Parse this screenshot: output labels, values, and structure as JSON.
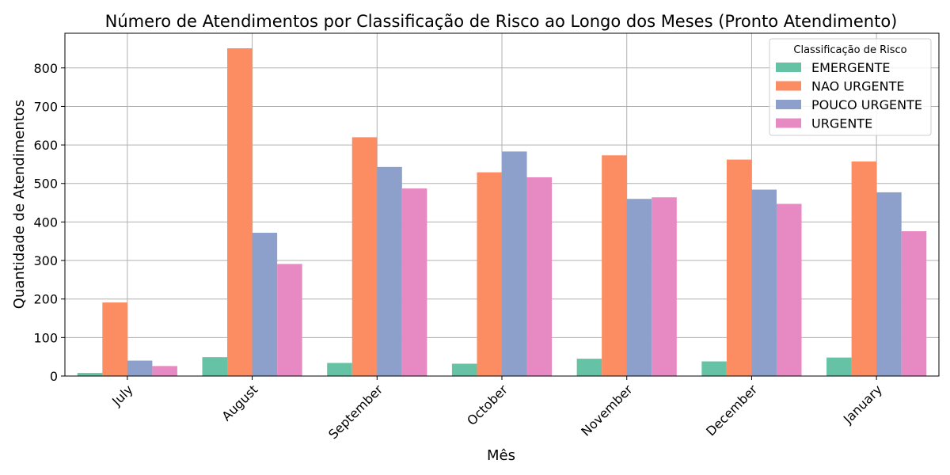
{
  "chart_data": {
    "type": "bar",
    "title": "Número de Atendimentos por Classificação de Risco ao Longo dos Meses (Pronto Atendimento)",
    "xlabel": "Mês",
    "ylabel": "Quantidade de Atendimentos",
    "ylim": [
      0,
      890
    ],
    "yticks": [
      0,
      100,
      200,
      300,
      400,
      500,
      600,
      700,
      800
    ],
    "grid": true,
    "legend_title": "Classificação de Risco",
    "legend_placement": "top-right",
    "categories": [
      "July",
      "August",
      "September",
      "October",
      "November",
      "December",
      "January"
    ],
    "series": [
      {
        "name": "EMERGENTE",
        "color": "#66c2a5",
        "values": [
          8,
          49,
          34,
          32,
          45,
          38,
          48
        ]
      },
      {
        "name": "NAO URGENTE",
        "color": "#fc8d62",
        "values": [
          191,
          851,
          620,
          529,
          573,
          562,
          557
        ]
      },
      {
        "name": "POUCO URGENTE",
        "color": "#8da0cb",
        "values": [
          40,
          372,
          543,
          583,
          460,
          484,
          477
        ]
      },
      {
        "name": "URGENTE",
        "color": "#e78ac3",
        "values": [
          26,
          291,
          487,
          516,
          464,
          447,
          376
        ]
      }
    ]
  }
}
